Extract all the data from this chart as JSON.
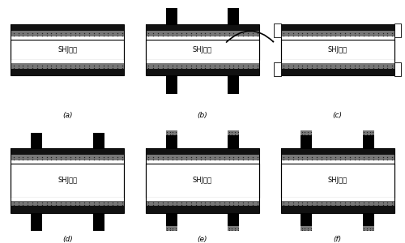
{
  "panels": [
    "(a)",
    "(b)",
    "(c)",
    "(d)",
    "(e)",
    "(f)"
  ],
  "label": "SHJ衬底",
  "bg_color": "#ffffff",
  "black": "#000000",
  "white": "#ffffff"
}
